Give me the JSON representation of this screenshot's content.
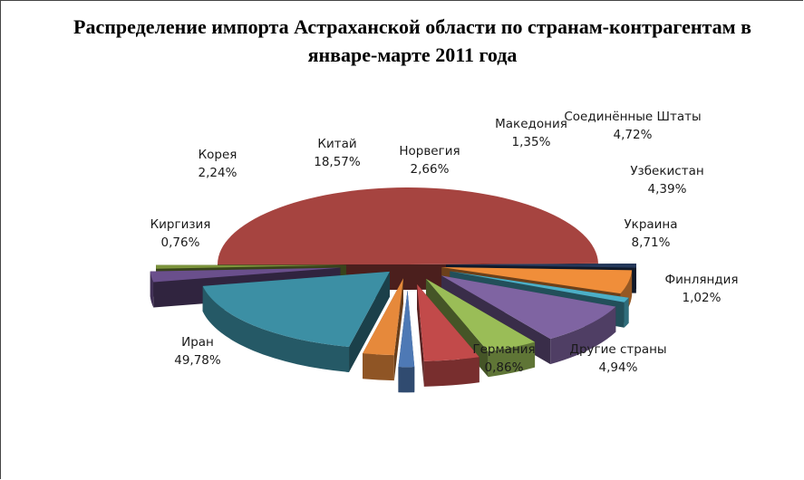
{
  "chart_data": {
    "type": "pie",
    "title": "Распределение импорта Астраханской области по странам-контрагентам в январе-марте 2011 года",
    "slices": [
      {
        "name": "Иран",
        "value": 49.78,
        "label": "49,78%",
        "color": "#A64440"
      },
      {
        "name": "Германия",
        "value": 0.86,
        "label": "0,86%",
        "color": "#24385A"
      },
      {
        "name": "Другие страны",
        "value": 4.94,
        "label": "4,94%",
        "color": "#F08E3A"
      },
      {
        "name": "Финляндия",
        "value": 1.02,
        "label": "1,02%",
        "color": "#4CAFC7"
      },
      {
        "name": "Украина",
        "value": 8.71,
        "label": "8,71%",
        "color": "#7F64A2"
      },
      {
        "name": "Узбекистан",
        "value": 4.39,
        "label": "4,39%",
        "color": "#9ABD57"
      },
      {
        "name": "Соединённые Штаты",
        "value": 4.72,
        "label": "4,72%",
        "color": "#C24A4A"
      },
      {
        "name": "Македония",
        "value": 1.35,
        "label": "1,35%",
        "color": "#4E79B5"
      },
      {
        "name": "Норвегия",
        "value": 2.66,
        "label": "2,66%",
        "color": "#E6893B"
      },
      {
        "name": "Китай",
        "value": 18.57,
        "label": "18,57%",
        "color": "#3C8FA4"
      },
      {
        "name": "Корея",
        "value": 2.24,
        "label": "2,24%",
        "color": "#6A4F8C"
      },
      {
        "name": "Киргизия",
        "value": 0.76,
        "label": "0,76%",
        "color": "#7C943C"
      }
    ],
    "legend": "none",
    "style": "3d-exploded"
  }
}
